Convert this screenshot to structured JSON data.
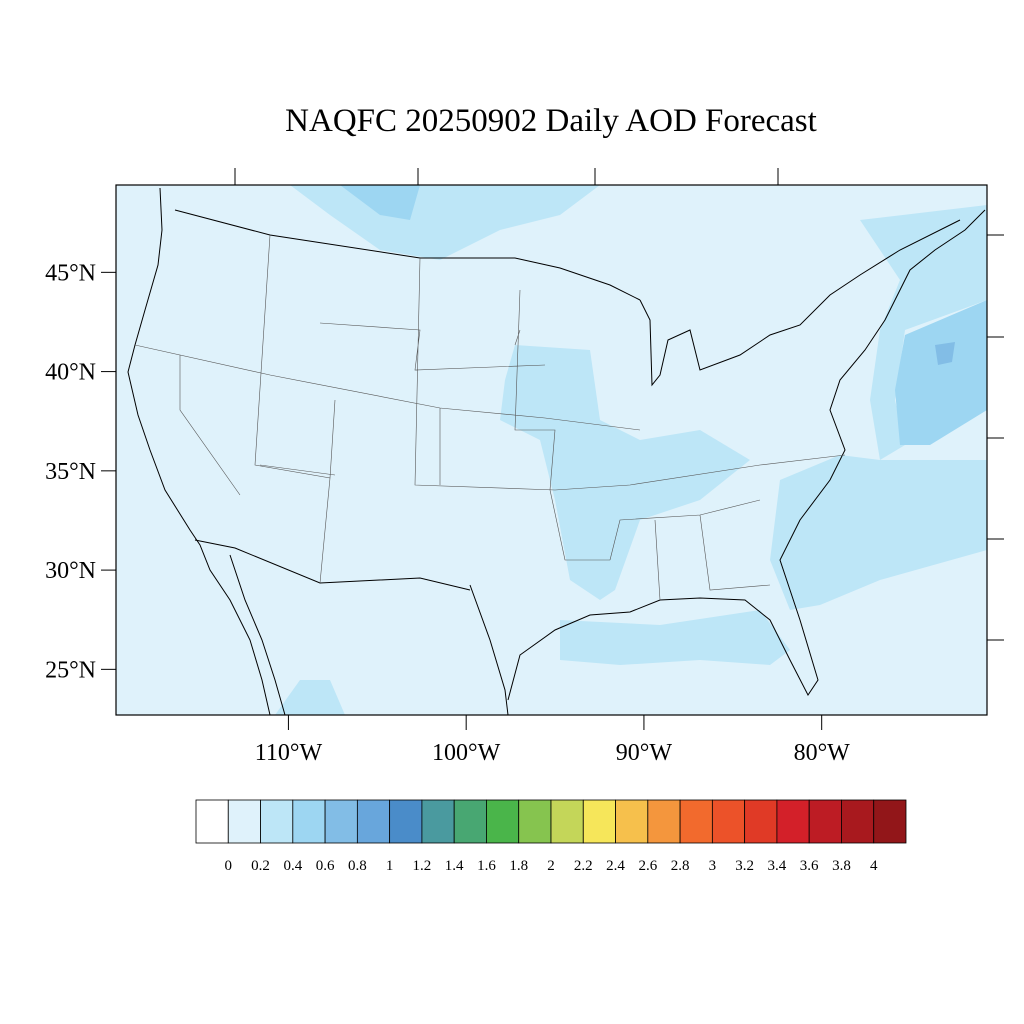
{
  "title": "NAQFC 20250902 Daily AOD Forecast",
  "map": {
    "xlim": [
      -119.7,
      -70.7
    ],
    "ylim": [
      22.7,
      49.4
    ],
    "xticks": [
      {
        "value": -110,
        "label": "110°W"
      },
      {
        "value": -100,
        "label": "100°W"
      },
      {
        "value": -90,
        "label": "90°W"
      },
      {
        "value": -80,
        "label": "80°W"
      }
    ],
    "yticks": [
      {
        "value": 25,
        "label": "25°N"
      },
      {
        "value": 30,
        "label": "30°N"
      },
      {
        "value": 35,
        "label": "35°N"
      },
      {
        "value": 40,
        "label": "40°N"
      },
      {
        "value": 45,
        "label": "45°N"
      }
    ]
  },
  "colorbar": {
    "levels": [
      0,
      0.2,
      0.4,
      0.6,
      0.8,
      1,
      1.2,
      1.4,
      1.6,
      1.8,
      2,
      2.2,
      2.4,
      2.6,
      2.8,
      3,
      3.2,
      3.4,
      3.6,
      3.8,
      4
    ],
    "colors": [
      "#ffffff",
      "#dff2fb",
      "#bde6f7",
      "#9dd6f2",
      "#82bde6",
      "#68a6dc",
      "#4a8cc9",
      "#4a9a9f",
      "#48a772",
      "#4ab54a",
      "#86c44f",
      "#c4d659",
      "#f6e65a",
      "#f6c04c",
      "#f4963d",
      "#f26a2d",
      "#ec5229",
      "#e03a26",
      "#d32029",
      "#bd1c24",
      "#a8191e",
      "#921619"
    ]
  }
}
